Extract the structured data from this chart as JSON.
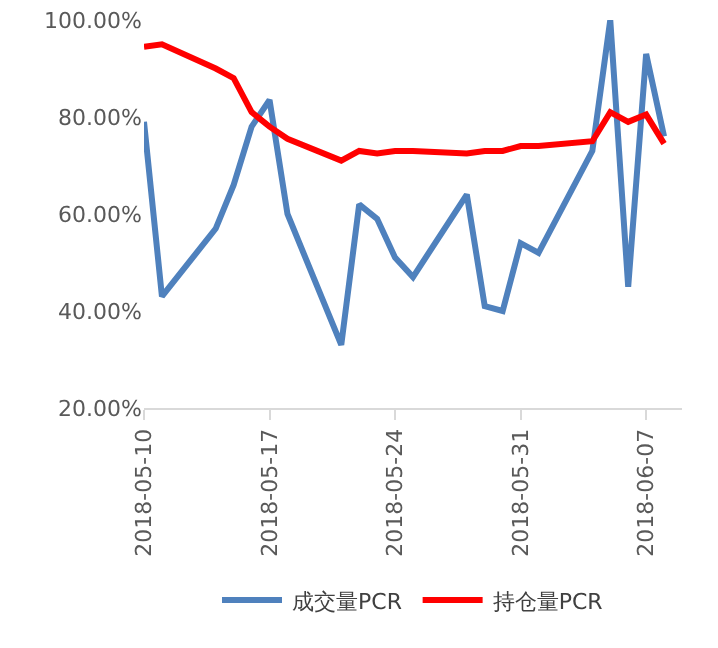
{
  "chart_data": {
    "type": "line",
    "x": [
      "2018-05-10",
      "2018-05-11",
      "2018-05-14",
      "2018-05-15",
      "2018-05-16",
      "2018-05-17",
      "2018-05-18",
      "2018-05-21",
      "2018-05-22",
      "2018-05-23",
      "2018-05-24",
      "2018-05-25",
      "2018-05-28",
      "2018-05-29",
      "2018-05-30",
      "2018-05-31",
      "2018-06-01",
      "2018-06-04",
      "2018-06-05",
      "2018-06-06",
      "2018-06-07",
      "2018-06-08"
    ],
    "series": [
      {
        "name": "成交量PCR",
        "color": "#4f81bd",
        "values": [
          79,
          43,
          57,
          66,
          78,
          83.5,
          60,
          33,
          62,
          59,
          51,
          47,
          64,
          41,
          40,
          54,
          52,
          73,
          100,
          45,
          93,
          76
        ]
      },
      {
        "name": "持仓量PCR",
        "color": "#ff0000",
        "values": [
          94.5,
          95,
          90,
          88,
          81,
          78,
          75.5,
          71,
          73,
          72.5,
          73,
          73,
          72.5,
          73,
          73,
          74,
          74,
          75,
          81,
          79,
          80.5,
          74.5
        ]
      }
    ],
    "xlim": [
      "2018-05-10",
      "2018-06-09"
    ],
    "xticks": [
      "2018-05-10",
      "2018-05-17",
      "2018-05-24",
      "2018-05-31",
      "2018-06-07"
    ],
    "ylim": [
      20,
      100
    ],
    "yticks": [
      {
        "value": 20,
        "label": "20.00%"
      },
      {
        "value": 40,
        "label": "40.00%"
      },
      {
        "value": 60,
        "label": "60.00%"
      },
      {
        "value": 80,
        "label": "80.00%"
      },
      {
        "value": 100,
        "label": "100.00%"
      }
    ],
    "grid": false,
    "legend": "bottom",
    "marker": "none",
    "line_style": "solid"
  }
}
